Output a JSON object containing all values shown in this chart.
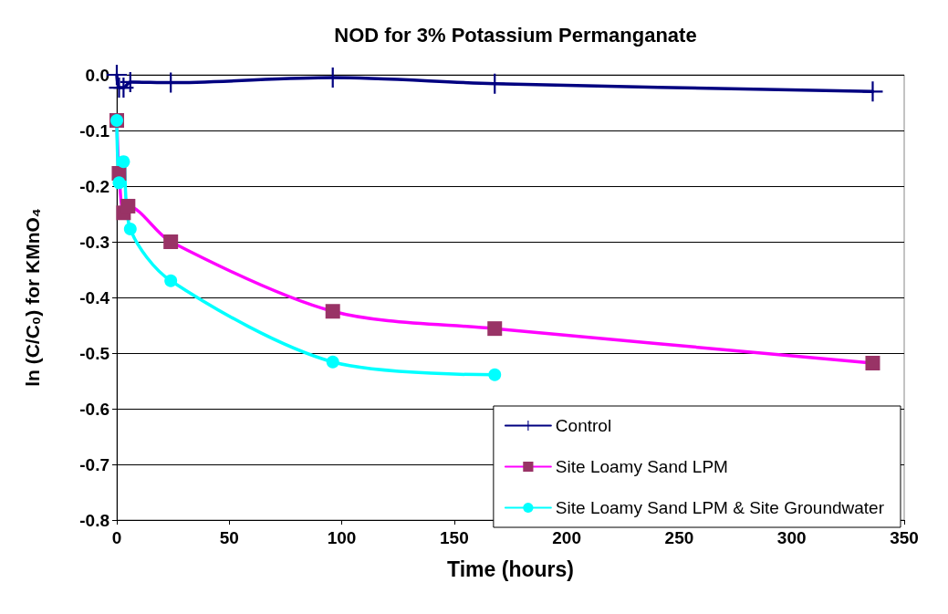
{
  "chart_data": {
    "type": "line",
    "title": "NOD for 3% Potassium Permanganate",
    "xlabel": "Time (hours)",
    "ylabel": "ln (C/C₀) for KMnO₄",
    "xlim": [
      0,
      350
    ],
    "xticks": [
      0,
      50,
      100,
      150,
      200,
      250,
      300,
      350
    ],
    "ylim": [
      -0.8,
      0
    ],
    "yticks": [
      {
        "value": -0.8,
        "label": "-0.8"
      },
      {
        "value": -0.7,
        "label": "-0.7"
      },
      {
        "value": -0.6,
        "label": "-0.6"
      },
      {
        "value": -0.5,
        "label": "-0.5"
      },
      {
        "value": -0.4,
        "label": "-0.4"
      },
      {
        "value": -0.3,
        "label": "-0.3"
      },
      {
        "value": -0.2,
        "label": "-0.2"
      },
      {
        "value": -0.1,
        "label": "-0.1"
      },
      {
        "value": 0,
        "label": "0.0"
      }
    ],
    "grid": "y",
    "legend": "bottom right",
    "line_style": "solid",
    "series": [
      {
        "name": "Control",
        "color": "#000080",
        "marker": "cross",
        "x": [
          0,
          1,
          3,
          6,
          24,
          96,
          168,
          336
        ],
        "values": [
          0,
          -0.023,
          -0.023,
          -0.013,
          -0.014,
          -0.005,
          -0.016,
          -0.03
        ]
      },
      {
        "name": "Site Loamy Sand LPM",
        "color": "#ff00ff",
        "marker": "square",
        "x": [
          0,
          1,
          3,
          5,
          24,
          96,
          168,
          336
        ],
        "values": [
          -0.082,
          -0.177,
          -0.248,
          -0.236,
          -0.3,
          -0.425,
          -0.456,
          -0.518
        ]
      },
      {
        "name": "Site Loamy Sand LPM & Site Groundwater",
        "color": "#00ffff",
        "marker": "circle",
        "x": [
          0,
          1,
          3,
          6,
          24,
          96,
          168
        ],
        "values": [
          -0.082,
          -0.194,
          -0.156,
          -0.277,
          -0.37,
          -0.516,
          -0.539
        ]
      }
    ]
  }
}
